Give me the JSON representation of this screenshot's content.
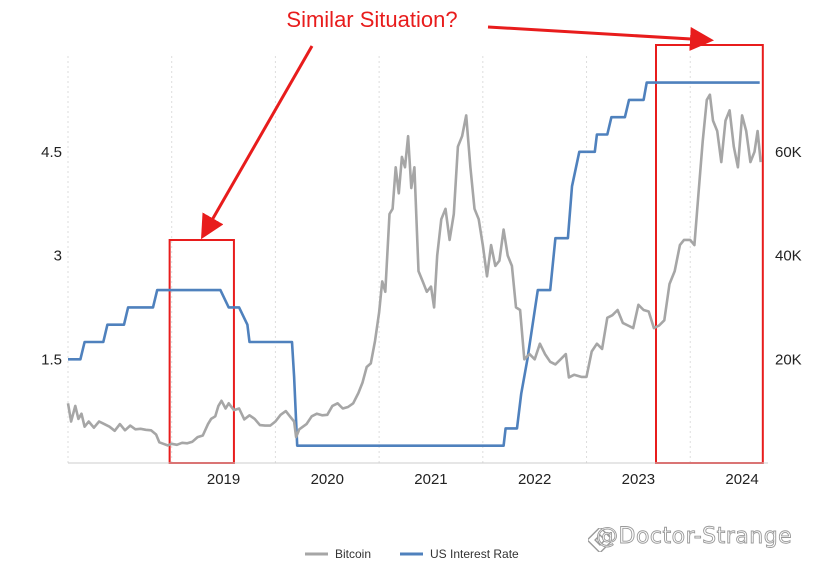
{
  "colors": {
    "bitcoin": "#a6a6a6",
    "rate": "#4f81bd",
    "annotation": "#e81c1c",
    "grid": "#dddddd"
  },
  "annotation": {
    "text": "Similar Situation?"
  },
  "legend": {
    "placement": "bottom-center",
    "items": [
      {
        "label": "Bitcoin",
        "color": "#a6a6a6"
      },
      {
        "label": "US Interest Rate",
        "color": "#4f81bd"
      }
    ]
  },
  "watermark": {
    "text": "@Doctor-Strange",
    "logo_icon": "binance-diamond-icon"
  },
  "chart_data": {
    "type": "line",
    "title": "",
    "xlabel": "",
    "x_ticks": [
      "2019",
      "2020",
      "2021",
      "2022",
      "2023",
      "2024"
    ],
    "xlim": [
      2018.0,
      2024.75
    ],
    "y_left": {
      "label": "",
      "ticks": [
        "1.5",
        "3",
        "4.5"
      ],
      "tick_values": [
        1.5,
        3,
        4.5
      ],
      "range": [
        0,
        6
      ]
    },
    "y_right": {
      "label": "",
      "ticks": [
        "20K",
        "40K",
        "60K"
      ],
      "tick_values": [
        20000,
        40000,
        60000
      ],
      "range": [
        0,
        80000
      ]
    },
    "grid": {
      "vertical": true,
      "horizontal": false,
      "style": "dotted"
    },
    "highlight_boxes": [
      {
        "x_start": 2018.98,
        "x_end": 2019.6
      },
      {
        "x_start": 2023.67,
        "x_end": 2024.7
      }
    ],
    "series": [
      {
        "name": "US Interest Rate",
        "axis": "left",
        "step": true,
        "points": [
          [
            2018.0,
            1.5
          ],
          [
            2018.12,
            1.5
          ],
          [
            2018.16,
            1.75
          ],
          [
            2018.34,
            1.75
          ],
          [
            2018.38,
            2.0
          ],
          [
            2018.54,
            2.0
          ],
          [
            2018.58,
            2.25
          ],
          [
            2018.82,
            2.25
          ],
          [
            2018.86,
            2.5
          ],
          [
            2019.47,
            2.5
          ],
          [
            2019.55,
            2.25
          ],
          [
            2019.65,
            2.25
          ],
          [
            2019.73,
            2.0
          ],
          [
            2019.75,
            1.75
          ],
          [
            2020.16,
            1.75
          ],
          [
            2020.18,
            1.25
          ],
          [
            2020.21,
            0.25
          ],
          [
            2022.2,
            0.25
          ],
          [
            2022.22,
            0.5
          ],
          [
            2022.33,
            0.5
          ],
          [
            2022.37,
            1.0
          ],
          [
            2022.43,
            1.5
          ],
          [
            2022.53,
            2.5
          ],
          [
            2022.65,
            2.5
          ],
          [
            2022.7,
            3.25
          ],
          [
            2022.82,
            3.25
          ],
          [
            2022.86,
            4.0
          ],
          [
            2022.93,
            4.5
          ],
          [
            2023.08,
            4.5
          ],
          [
            2023.1,
            4.75
          ],
          [
            2023.2,
            4.75
          ],
          [
            2023.24,
            5.0
          ],
          [
            2023.37,
            5.0
          ],
          [
            2023.41,
            5.25
          ],
          [
            2023.55,
            5.25
          ],
          [
            2023.58,
            5.5
          ],
          [
            2024.67,
            5.5
          ]
        ]
      },
      {
        "name": "Bitcoin",
        "axis": "right",
        "step": false,
        "points": [
          [
            2018.0,
            11500
          ],
          [
            2018.03,
            8000
          ],
          [
            2018.07,
            11000
          ],
          [
            2018.1,
            8500
          ],
          [
            2018.13,
            9500
          ],
          [
            2018.16,
            7000
          ],
          [
            2018.2,
            8000
          ],
          [
            2018.25,
            6800
          ],
          [
            2018.3,
            8000
          ],
          [
            2018.35,
            7500
          ],
          [
            2018.4,
            7000
          ],
          [
            2018.45,
            6200
          ],
          [
            2018.5,
            7500
          ],
          [
            2018.55,
            6300
          ],
          [
            2018.6,
            7200
          ],
          [
            2018.65,
            6500
          ],
          [
            2018.7,
            6600
          ],
          [
            2018.75,
            6400
          ],
          [
            2018.8,
            6300
          ],
          [
            2018.85,
            5500
          ],
          [
            2018.88,
            4000
          ],
          [
            2018.92,
            3700
          ],
          [
            2018.96,
            3400
          ],
          [
            2019.0,
            3700
          ],
          [
            2019.05,
            3500
          ],
          [
            2019.1,
            3900
          ],
          [
            2019.15,
            3800
          ],
          [
            2019.2,
            4100
          ],
          [
            2019.25,
            5000
          ],
          [
            2019.3,
            5300
          ],
          [
            2019.35,
            7500
          ],
          [
            2019.38,
            8500
          ],
          [
            2019.42,
            9000
          ],
          [
            2019.45,
            11000
          ],
          [
            2019.48,
            12000
          ],
          [
            2019.52,
            10500
          ],
          [
            2019.55,
            11500
          ],
          [
            2019.6,
            10200
          ],
          [
            2019.65,
            10500
          ],
          [
            2019.7,
            8400
          ],
          [
            2019.75,
            9200
          ],
          [
            2019.8,
            8500
          ],
          [
            2019.85,
            7300
          ],
          [
            2019.9,
            7200
          ],
          [
            2019.95,
            7200
          ],
          [
            2020.0,
            8000
          ],
          [
            2020.05,
            9300
          ],
          [
            2020.1,
            10000
          ],
          [
            2020.14,
            9000
          ],
          [
            2020.18,
            8000
          ],
          [
            2020.2,
            5000
          ],
          [
            2020.23,
            6500
          ],
          [
            2020.3,
            7500
          ],
          [
            2020.35,
            9000
          ],
          [
            2020.4,
            9500
          ],
          [
            2020.45,
            9200
          ],
          [
            2020.5,
            9300
          ],
          [
            2020.55,
            11000
          ],
          [
            2020.6,
            11500
          ],
          [
            2020.65,
            10500
          ],
          [
            2020.7,
            10800
          ],
          [
            2020.75,
            11500
          ],
          [
            2020.8,
            13500
          ],
          [
            2020.84,
            15500
          ],
          [
            2020.88,
            18500
          ],
          [
            2020.92,
            19200
          ],
          [
            2020.96,
            23500
          ],
          [
            2021.0,
            29000
          ],
          [
            2021.03,
            35000
          ],
          [
            2021.06,
            33000
          ],
          [
            2021.1,
            48000
          ],
          [
            2021.13,
            49000
          ],
          [
            2021.16,
            57000
          ],
          [
            2021.19,
            52000
          ],
          [
            2021.22,
            59000
          ],
          [
            2021.25,
            57000
          ],
          [
            2021.28,
            63000
          ],
          [
            2021.31,
            53000
          ],
          [
            2021.34,
            57000
          ],
          [
            2021.38,
            37000
          ],
          [
            2021.42,
            35000
          ],
          [
            2021.46,
            33000
          ],
          [
            2021.5,
            34000
          ],
          [
            2021.53,
            30000
          ],
          [
            2021.56,
            40000
          ],
          [
            2021.6,
            47000
          ],
          [
            2021.64,
            49000
          ],
          [
            2021.68,
            43000
          ],
          [
            2021.72,
            48000
          ],
          [
            2021.76,
            61000
          ],
          [
            2021.8,
            63000
          ],
          [
            2021.84,
            67000
          ],
          [
            2021.88,
            57000
          ],
          [
            2021.92,
            49000
          ],
          [
            2021.96,
            47000
          ],
          [
            2022.0,
            42000
          ],
          [
            2022.04,
            36000
          ],
          [
            2022.08,
            42000
          ],
          [
            2022.12,
            38000
          ],
          [
            2022.16,
            39000
          ],
          [
            2022.2,
            45000
          ],
          [
            2022.24,
            40000
          ],
          [
            2022.28,
            38000
          ],
          [
            2022.32,
            30000
          ],
          [
            2022.36,
            29500
          ],
          [
            2022.4,
            20000
          ],
          [
            2022.45,
            21000
          ],
          [
            2022.5,
            20000
          ],
          [
            2022.55,
            23000
          ],
          [
            2022.6,
            21000
          ],
          [
            2022.65,
            19500
          ],
          [
            2022.7,
            19000
          ],
          [
            2022.75,
            20000
          ],
          [
            2022.8,
            21000
          ],
          [
            2022.83,
            16500
          ],
          [
            2022.88,
            17000
          ],
          [
            2022.95,
            16600
          ],
          [
            2023.0,
            16600
          ],
          [
            2023.05,
            21500
          ],
          [
            2023.1,
            23000
          ],
          [
            2023.15,
            22000
          ],
          [
            2023.2,
            28000
          ],
          [
            2023.25,
            28500
          ],
          [
            2023.3,
            29500
          ],
          [
            2023.35,
            27000
          ],
          [
            2023.4,
            26500
          ],
          [
            2023.45,
            26000
          ],
          [
            2023.5,
            30500
          ],
          [
            2023.55,
            29500
          ],
          [
            2023.6,
            29200
          ],
          [
            2023.65,
            26000
          ],
          [
            2023.7,
            26500
          ],
          [
            2023.75,
            27500
          ],
          [
            2023.8,
            34500
          ],
          [
            2023.85,
            37000
          ],
          [
            2023.9,
            42000
          ],
          [
            2023.94,
            43000
          ],
          [
            2024.0,
            43000
          ],
          [
            2024.04,
            42000
          ],
          [
            2024.08,
            52000
          ],
          [
            2024.12,
            62000
          ],
          [
            2024.16,
            70000
          ],
          [
            2024.19,
            71000
          ],
          [
            2024.22,
            66000
          ],
          [
            2024.26,
            64000
          ],
          [
            2024.3,
            58000
          ],
          [
            2024.34,
            66000
          ],
          [
            2024.38,
            68000
          ],
          [
            2024.42,
            61000
          ],
          [
            2024.46,
            57000
          ],
          [
            2024.5,
            67000
          ],
          [
            2024.54,
            64000
          ],
          [
            2024.58,
            58000
          ],
          [
            2024.62,
            60000
          ],
          [
            2024.65,
            64000
          ],
          [
            2024.68,
            58000
          ]
        ]
      }
    ]
  }
}
